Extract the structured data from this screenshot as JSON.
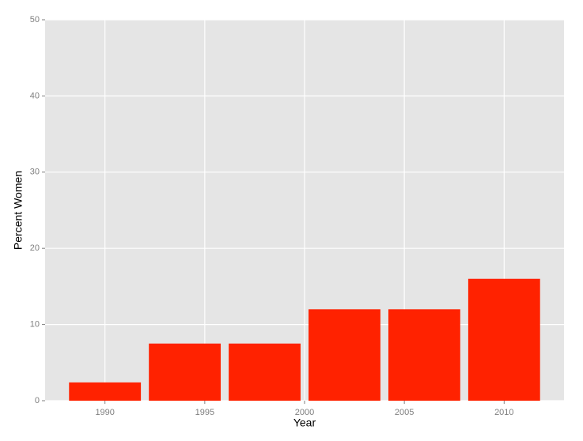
{
  "chart_data": {
    "type": "bar",
    "x_label": "Year",
    "y_label": "Percent Women",
    "x": [
      1990,
      1994,
      1998,
      2002,
      2006,
      2010
    ],
    "values": [
      2.4,
      7.5,
      7.5,
      12,
      12,
      16
    ],
    "color": "#ff2200",
    "xlim": [
      1987,
      2013
    ],
    "xticks": [
      1990,
      1995,
      2000,
      2005,
      2010
    ],
    "ylim": [
      0,
      50
    ],
    "yticks": [
      0,
      10,
      20,
      30,
      40,
      50
    ],
    "grid": true
  }
}
